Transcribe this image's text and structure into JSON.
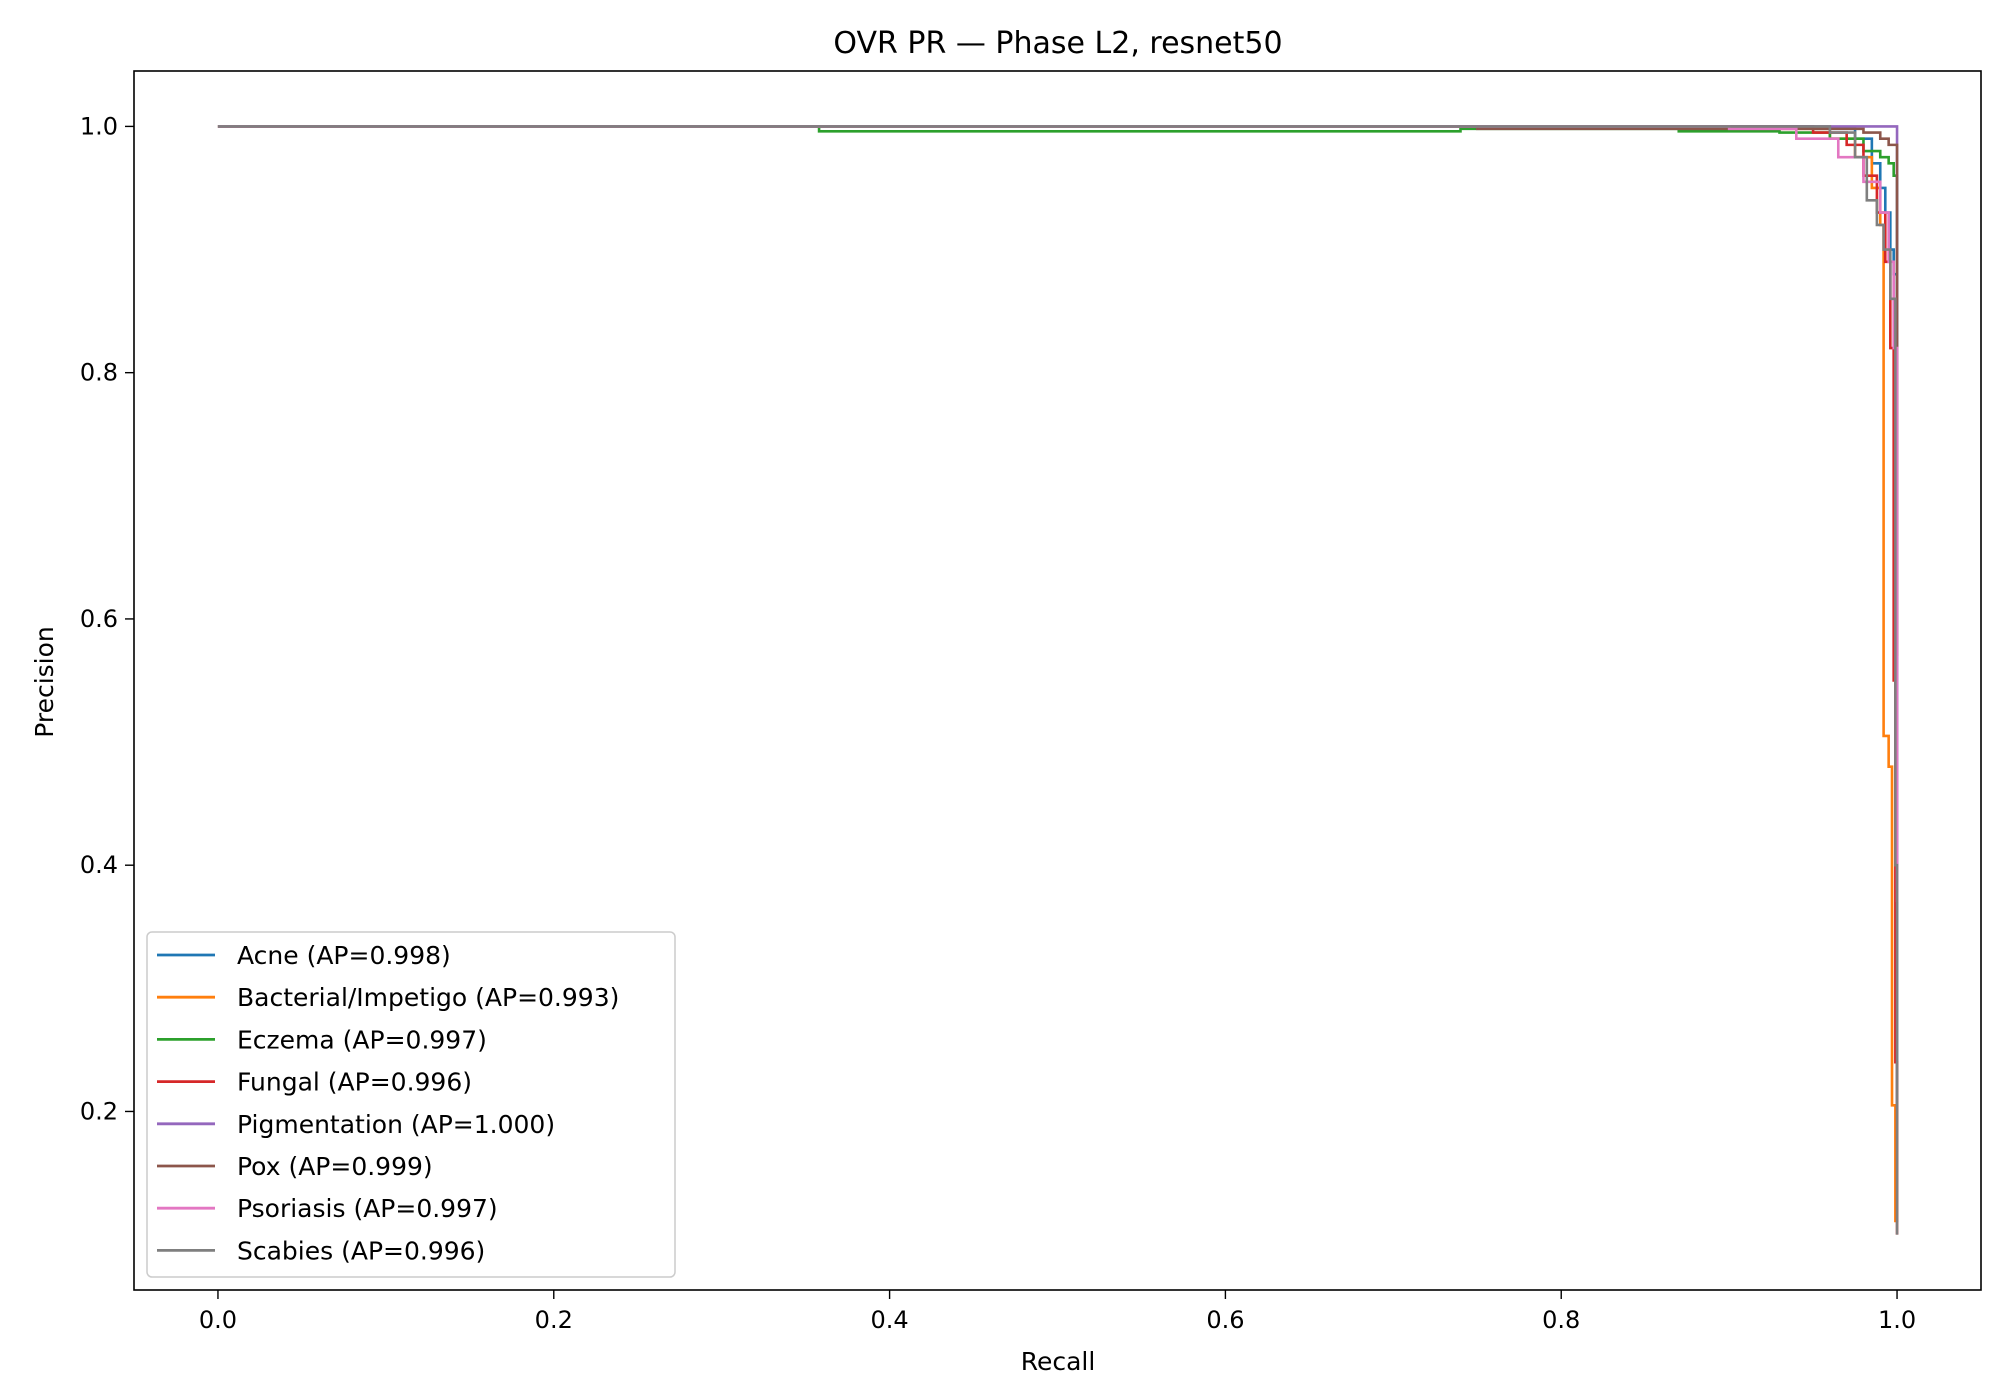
{
  "chart_data": {
    "type": "line",
    "title": "OVR PR — Phase L2, resnet50",
    "xlabel": "Recall",
    "ylabel": "Precision",
    "xlim": [
      -0.05,
      1.05
    ],
    "ylim": [
      0.055,
      1.045
    ],
    "xticks": [
      0.0,
      0.2,
      0.4,
      0.6,
      0.8,
      1.0
    ],
    "xtick_labels": [
      "0.0",
      "0.2",
      "0.4",
      "0.6",
      "0.8",
      "1.0"
    ],
    "yticks": [
      0.2,
      0.4,
      0.6,
      0.8,
      1.0
    ],
    "ytick_labels": [
      "0.2",
      "0.4",
      "0.6",
      "0.8",
      "1.0"
    ],
    "grid": false,
    "legend_position": "lower-left",
    "series": [
      {
        "name": "Acne (AP=0.998)",
        "color": "#1f77b4",
        "x": [
          0.0,
          0.9,
          0.95,
          0.975,
          0.985,
          0.99,
          0.993,
          0.996,
          0.998,
          1.0,
          1.0
        ],
        "y": [
          1.0,
          1.0,
          0.998,
          0.99,
          0.97,
          0.95,
          0.93,
          0.9,
          0.88,
          0.6,
          0.11
        ]
      },
      {
        "name": "Bacterial/Impetigo (AP=0.993)",
        "color": "#ff7f0e",
        "x": [
          0.0,
          0.85,
          0.93,
          0.96,
          0.975,
          0.985,
          0.99,
          0.992,
          0.992,
          0.995,
          0.995,
          0.997,
          0.997,
          0.999,
          0.999
        ],
        "y": [
          1.0,
          1.0,
          0.998,
          0.99,
          0.975,
          0.95,
          0.92,
          0.86,
          0.505,
          0.505,
          0.48,
          0.48,
          0.205,
          0.205,
          0.11
        ]
      },
      {
        "name": "Eczema (AP=0.997)",
        "color": "#2ca02c",
        "x": [
          0.0,
          0.353,
          0.358,
          0.74,
          0.87,
          0.93,
          0.96,
          0.98,
          0.99,
          0.995,
          0.998,
          1.0,
          1.0
        ],
        "y": [
          1.0,
          1.0,
          0.996,
          0.998,
          0.996,
          0.995,
          0.99,
          0.98,
          0.975,
          0.97,
          0.96,
          0.9,
          0.58
        ]
      },
      {
        "name": "Fungal (AP=0.996)",
        "color": "#d62728",
        "x": [
          0.0,
          0.9,
          0.95,
          0.97,
          0.98,
          0.988,
          0.993,
          0.996,
          0.998,
          0.999,
          1.0
        ],
        "y": [
          1.0,
          1.0,
          0.995,
          0.985,
          0.96,
          0.93,
          0.89,
          0.82,
          0.55,
          0.24,
          0.1
        ]
      },
      {
        "name": "Pigmentation (AP=1.000)",
        "color": "#9467bd",
        "x": [
          0.0,
          0.999,
          1.0,
          1.0
        ],
        "y": [
          1.0,
          1.0,
          1.0,
          0.38
        ]
      },
      {
        "name": "Pox (AP=0.999)",
        "color": "#8c564b",
        "x": [
          0.0,
          0.745,
          0.75,
          0.95,
          0.98,
          0.99,
          0.995,
          1.0,
          1.0
        ],
        "y": [
          1.0,
          1.0,
          0.998,
          0.998,
          0.995,
          0.99,
          0.985,
          0.98,
          0.57
        ]
      },
      {
        "name": "Psoriasis (AP=0.997)",
        "color": "#e377c2",
        "x": [
          0.0,
          0.85,
          0.9,
          0.94,
          0.965,
          0.98,
          0.99,
          0.995,
          0.998,
          1.0,
          1.0
        ],
        "y": [
          1.0,
          1.0,
          0.998,
          0.99,
          0.975,
          0.955,
          0.93,
          0.89,
          0.82,
          0.6,
          0.37
        ]
      },
      {
        "name": "Scabies (AP=0.996)",
        "color": "#7f7f7f",
        "x": [
          0.0,
          0.93,
          0.96,
          0.975,
          0.982,
          0.988,
          0.992,
          0.996,
          0.999,
          1.0
        ],
        "y": [
          1.0,
          1.0,
          0.995,
          0.975,
          0.94,
          0.92,
          0.9,
          0.86,
          0.4,
          0.1
        ]
      }
    ]
  }
}
